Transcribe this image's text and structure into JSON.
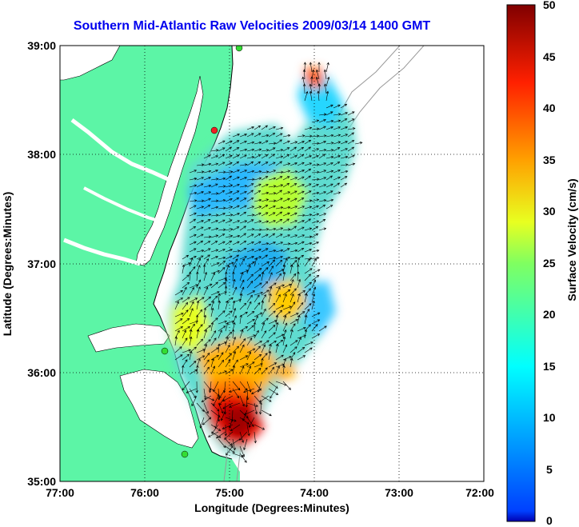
{
  "title": "Southern Mid-Atlantic Raw Velocities 2009/03/14 1400 GMT",
  "x_axis": {
    "label": "Longitude (Degrees:Minutes)",
    "ticks": [
      "77:00",
      "76:00",
      "75:00",
      "74:00",
      "73:00",
      "72:00"
    ],
    "range": [
      -77,
      -72
    ]
  },
  "y_axis": {
    "label": "Latitude (Degrees:Minutes)",
    "ticks": [
      "39:00",
      "38:00",
      "37:00",
      "36:00",
      "35:00"
    ],
    "range": [
      35,
      39
    ]
  },
  "colorbar": {
    "label": "Surface Velocity (cm/s)",
    "ticks": [
      "50",
      "45",
      "40",
      "35",
      "30",
      "25",
      "20",
      "15",
      "10",
      "5",
      "0"
    ],
    "range": [
      0,
      50
    ],
    "colormap": "jet"
  },
  "colors": {
    "land": "#5cf5a6",
    "title": "#0000ee",
    "grid": "#000000",
    "station_green": "#33dd33",
    "station_red": "#ee2222"
  }
}
